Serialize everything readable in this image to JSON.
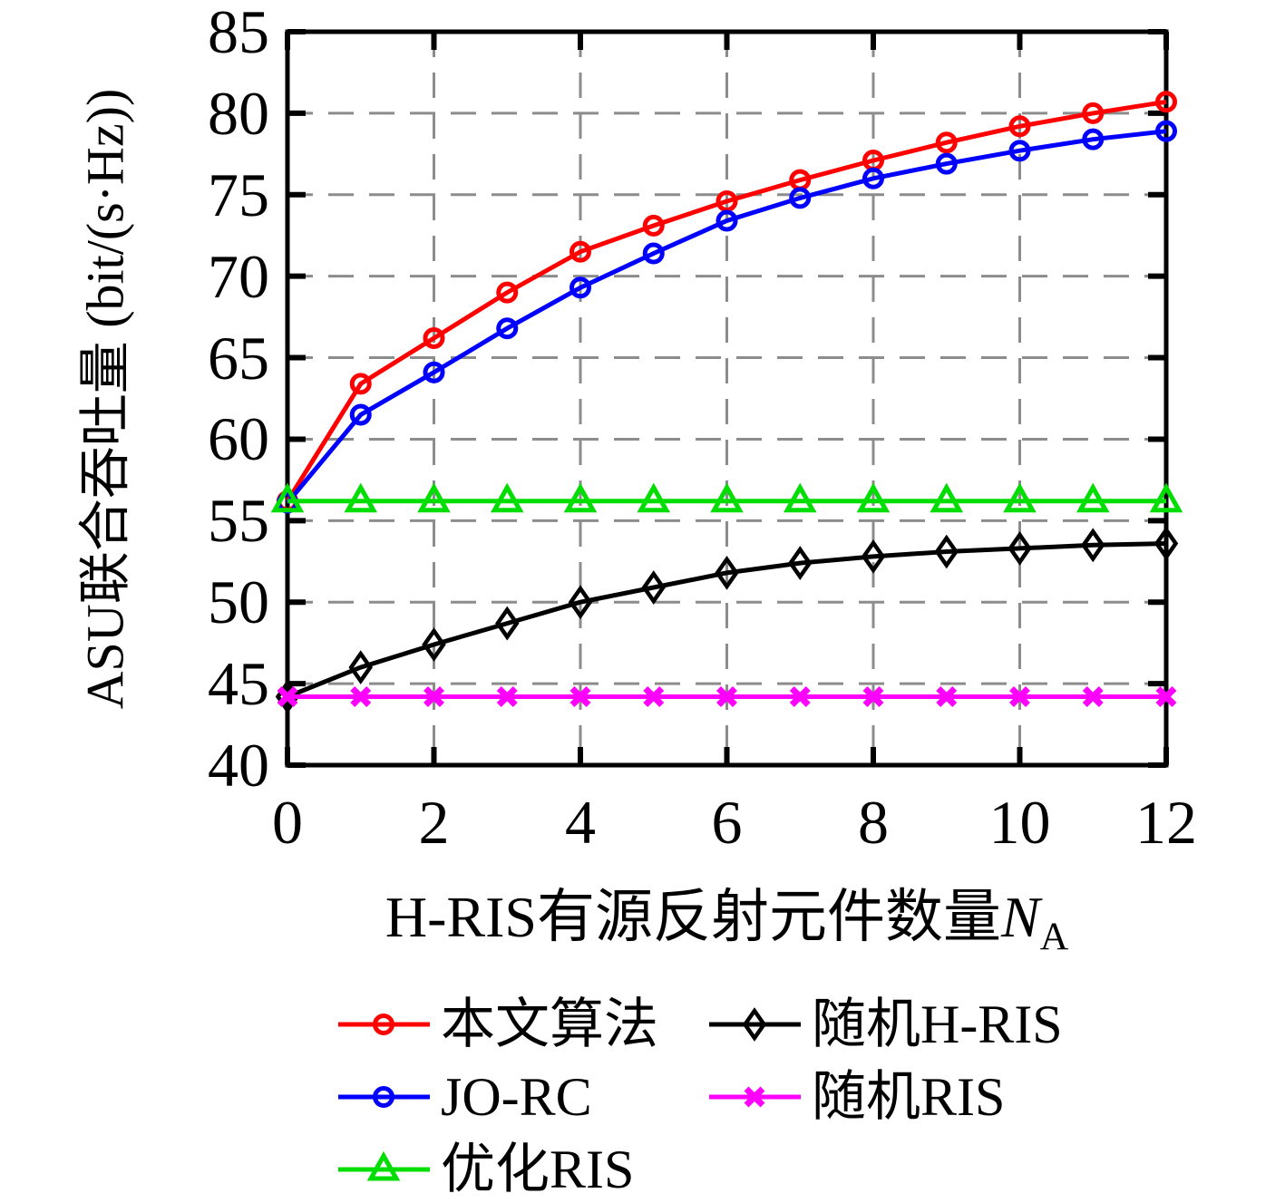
{
  "figure": {
    "background": "#ffffff",
    "frame_color": "#000000"
  },
  "chart_data": {
    "type": "line",
    "x": [
      0,
      1,
      2,
      3,
      4,
      5,
      6,
      7,
      8,
      9,
      10,
      11,
      12
    ],
    "series": [
      {
        "name": "本文算法",
        "color": "#ff0000",
        "marker": "circle",
        "values": [
          56.2,
          63.4,
          66.2,
          69.0,
          71.5,
          73.1,
          74.6,
          75.9,
          77.1,
          78.2,
          79.2,
          80.0,
          80.7
        ]
      },
      {
        "name": "JO-RC",
        "color": "#0000ff",
        "marker": "circle",
        "values": [
          56.1,
          61.5,
          64.1,
          66.8,
          69.3,
          71.4,
          73.4,
          74.8,
          76.0,
          76.9,
          77.7,
          78.4,
          78.9
        ]
      },
      {
        "name": "优化RIS",
        "color": "#00dd00",
        "marker": "triangle",
        "values": [
          56.2,
          56.2,
          56.2,
          56.2,
          56.2,
          56.2,
          56.2,
          56.2,
          56.2,
          56.2,
          56.2,
          56.2,
          56.2
        ]
      },
      {
        "name": "随机H-RIS",
        "color": "#000000",
        "marker": "diamond",
        "values": [
          44.2,
          46.0,
          47.4,
          48.7,
          50.0,
          50.9,
          51.8,
          52.4,
          52.8,
          53.1,
          53.3,
          53.5,
          53.6
        ]
      },
      {
        "name": "随机RIS",
        "color": "#ff00ff",
        "marker": "x",
        "values": [
          44.2,
          44.2,
          44.2,
          44.2,
          44.2,
          44.2,
          44.2,
          44.2,
          44.2,
          44.2,
          44.2,
          44.2,
          44.2
        ]
      }
    ],
    "xlabel": {
      "text": "H-RIS有源反射元件数量",
      "var": "N",
      "sub": "A"
    },
    "ylabel": "ASU联合吞吐量 (bit/(s·Hz))",
    "xlim": [
      0,
      12
    ],
    "ylim": [
      40,
      85
    ],
    "xticks": [
      0,
      2,
      4,
      6,
      8,
      10,
      12
    ],
    "yticks": [
      40,
      45,
      50,
      55,
      60,
      65,
      70,
      75,
      80,
      85
    ],
    "grid": true,
    "grid_color": "#8c8c8c",
    "legend_position": "below-chart",
    "legend_layout": [
      [
        0,
        3
      ],
      [
        1,
        4
      ],
      [
        2
      ]
    ]
  }
}
